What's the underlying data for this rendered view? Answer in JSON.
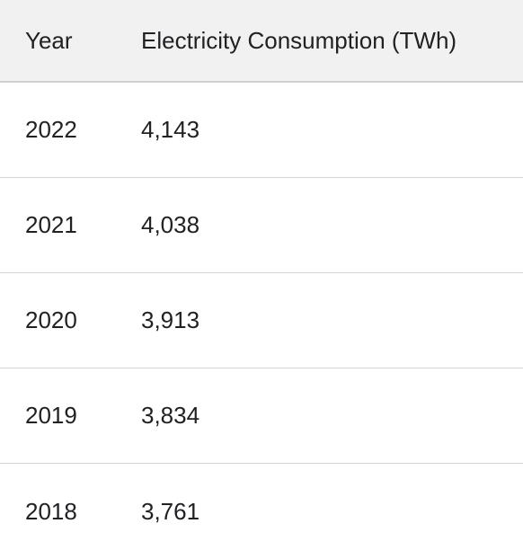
{
  "chart_data": {
    "type": "table",
    "columns": [
      "Year",
      "Electricity Consumption (TWh)"
    ],
    "rows": [
      {
        "year": "2022",
        "value": "4,143"
      },
      {
        "year": "2021",
        "value": "4,038"
      },
      {
        "year": "2020",
        "value": "3,913"
      },
      {
        "year": "2019",
        "value": "3,834"
      },
      {
        "year": "2018",
        "value": "3,761"
      }
    ]
  }
}
